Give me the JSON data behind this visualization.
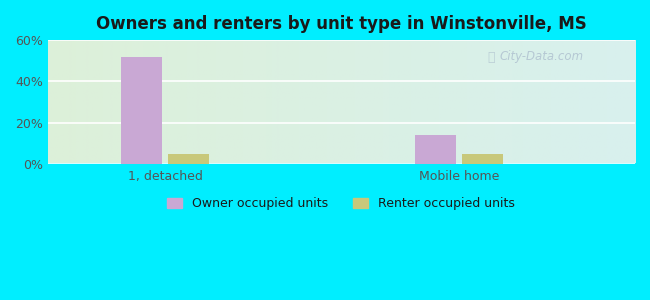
{
  "title": "Owners and renters by unit type in Winstonville, MS",
  "categories": [
    "1, detached",
    "Mobile home"
  ],
  "owner_values": [
    52,
    14
  ],
  "renter_values": [
    5,
    5
  ],
  "owner_color": "#c9a8d4",
  "renter_color": "#c8c87a",
  "ylim": [
    0,
    60
  ],
  "yticks": [
    0,
    20,
    40,
    60
  ],
  "ytick_labels": [
    "0%",
    "20%",
    "40%",
    "60%"
  ],
  "bg_outer": "#00eeff",
  "watermark": "City-Data.com",
  "legend_owner": "Owner occupied units",
  "legend_renter": "Renter occupied units",
  "bar_width": 0.28,
  "group_positions": [
    1.0,
    3.0
  ],
  "gradient_left": "#ddf0d8",
  "gradient_right": "#d8f0ee"
}
